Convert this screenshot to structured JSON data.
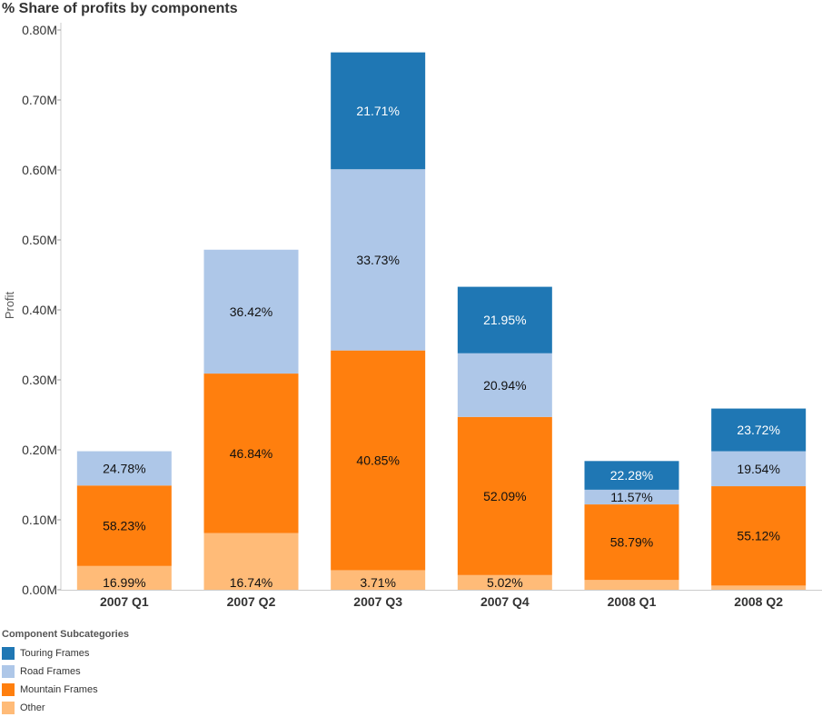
{
  "chart_data": {
    "type": "bar",
    "stacked": true,
    "title": "% Share of profits by components",
    "ylabel": "Profit",
    "xlabel": "",
    "ylim": [
      0,
      0.8
    ],
    "yticks": [
      "0.00M",
      "0.10M",
      "0.20M",
      "0.30M",
      "0.40M",
      "0.50M",
      "0.60M",
      "0.70M",
      "0.80M"
    ],
    "categories": [
      "2007 Q1",
      "2007 Q2",
      "2007 Q3",
      "2007 Q4",
      "2008 Q1",
      "2008 Q2"
    ],
    "totals": [
      0.198,
      0.487,
      0.769,
      0.433,
      0.184,
      0.258
    ],
    "series": [
      {
        "name": "Other",
        "color": "#ffbb78",
        "shares": [
          16.99,
          16.74,
          3.71,
          5.02,
          null,
          null
        ],
        "values": [
          0.034,
          0.081,
          0.028,
          0.021,
          0.014,
          0.006
        ]
      },
      {
        "name": "Mountain Frames",
        "color": "#ff7f0e",
        "shares": [
          58.23,
          46.84,
          40.85,
          52.09,
          58.79,
          55.12
        ],
        "values": [
          0.115,
          0.228,
          0.314,
          0.226,
          0.108,
          0.142
        ]
      },
      {
        "name": "Road Frames",
        "color": "#aec7e8",
        "shares": [
          24.78,
          36.42,
          33.73,
          20.94,
          11.57,
          19.54
        ],
        "values": [
          0.049,
          0.177,
          0.259,
          0.091,
          0.021,
          0.05
        ]
      },
      {
        "name": "Touring Frames",
        "color": "#1f77b4",
        "shares": [
          null,
          null,
          21.71,
          21.95,
          22.28,
          23.72
        ],
        "values": [
          0,
          0,
          0.167,
          0.095,
          0.041,
          0.061
        ]
      }
    ],
    "legend_title": "Component Subcategories",
    "legend_order": [
      "Touring Frames",
      "Road Frames",
      "Mountain Frames",
      "Other"
    ],
    "legend_placement": "bottom-left",
    "grid": false
  }
}
